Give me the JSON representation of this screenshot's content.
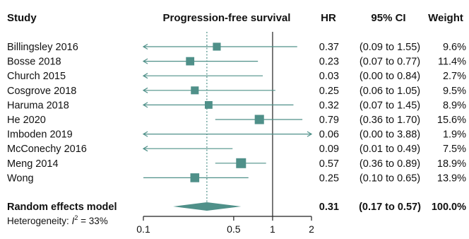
{
  "chart_data": {
    "type": "forest",
    "headers": {
      "study": "Study",
      "title": "Progression-free survival",
      "hr": "HR",
      "ci": "95% CI",
      "weight": "Weight"
    },
    "xlim": [
      0.1,
      2
    ],
    "x_scale": "log",
    "x_ticks": [
      0.1,
      0.5,
      1,
      2
    ],
    "x_tick_labels": [
      "0.1",
      "0.5",
      "1",
      "2"
    ],
    "reference_line": 1,
    "pooled_dotted_line": 0.31,
    "colors": {
      "marker": "#4f9089",
      "line": "#4f9089",
      "reference": "#222222"
    },
    "studies": [
      {
        "name": "Billingsley 2016",
        "hr": 0.37,
        "lower": 0.09,
        "upper": 1.55,
        "hr_text": "0.37",
        "ci_text": "(0.09 to 1.55)",
        "weight_text": "9.6%",
        "weight": 9.6
      },
      {
        "name": "Bosse 2018",
        "hr": 0.23,
        "lower": 0.07,
        "upper": 0.77,
        "hr_text": "0.23",
        "ci_text": "(0.07 to 0.77)",
        "weight_text": "11.4%",
        "weight": 11.4
      },
      {
        "name": "Church 2015",
        "hr": 0.03,
        "lower": 0.0,
        "upper": 0.84,
        "hr_text": "0.03",
        "ci_text": "(0.00 to 0.84)",
        "weight_text": "2.7%",
        "weight": 2.7
      },
      {
        "name": "Cosgrove 2018",
        "hr": 0.25,
        "lower": 0.06,
        "upper": 1.05,
        "hr_text": "0.25",
        "ci_text": "(0.06 to 1.05)",
        "weight_text": "9.5%",
        "weight": 9.5
      },
      {
        "name": "Haruma 2018",
        "hr": 0.32,
        "lower": 0.07,
        "upper": 1.45,
        "hr_text": "0.32",
        "ci_text": "(0.07 to 1.45)",
        "weight_text": "8.9%",
        "weight": 8.9
      },
      {
        "name": "He 2020",
        "hr": 0.79,
        "lower": 0.36,
        "upper": 1.7,
        "hr_text": "0.79",
        "ci_text": "(0.36 to 1.70)",
        "weight_text": "15.6%",
        "weight": 15.6
      },
      {
        "name": "Imboden 2019",
        "hr": 0.06,
        "lower": 0.0,
        "upper": 3.88,
        "hr_text": "0.06",
        "ci_text": "(0.00 to 3.88)",
        "weight_text": "1.9%",
        "weight": 1.9
      },
      {
        "name": "McConechy 2016",
        "hr": 0.09,
        "lower": 0.01,
        "upper": 0.49,
        "hr_text": "0.09",
        "ci_text": "(0.01 to 0.49)",
        "weight_text": "7.5%",
        "weight": 7.5
      },
      {
        "name": "Meng 2014",
        "hr": 0.57,
        "lower": 0.36,
        "upper": 0.89,
        "hr_text": "0.57",
        "ci_text": "(0.36 to 0.89)",
        "weight_text": "18.9%",
        "weight": 18.9
      },
      {
        "name": "Wong",
        "hr": 0.25,
        "lower": 0.1,
        "upper": 0.65,
        "hr_text": "0.25",
        "ci_text": "(0.10 to 0.65)",
        "weight_text": "13.9%",
        "weight": 13.9
      }
    ],
    "pooled": {
      "name": "Random effects model",
      "hr": 0.31,
      "lower": 0.17,
      "upper": 0.57,
      "hr_text": "0.31",
      "ci_text": "(0.17 to 0.57)",
      "weight_text": "100.0%"
    },
    "heterogeneity": {
      "prefix": "Heterogeneity: ",
      "symbol": "I",
      "exponent": "2",
      "suffix": " = 33%"
    }
  }
}
